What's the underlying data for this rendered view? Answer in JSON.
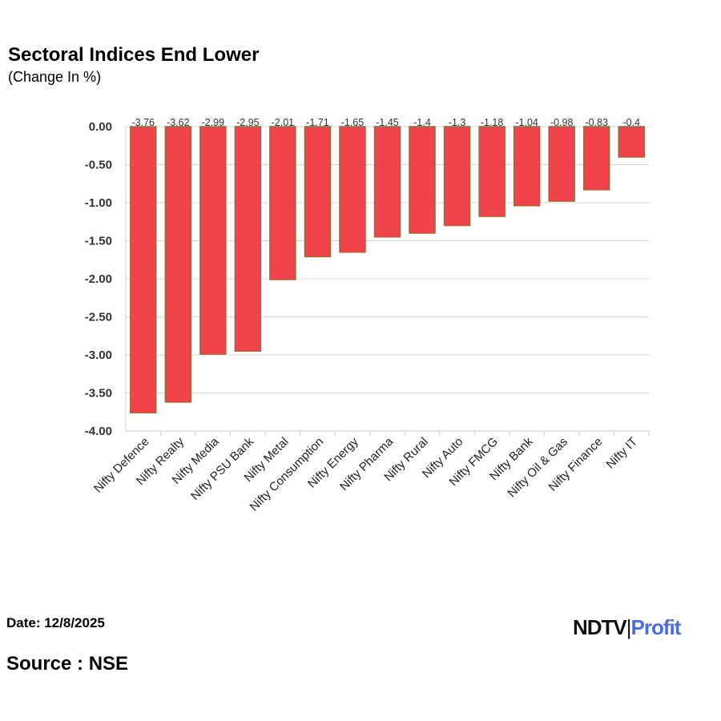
{
  "chart_data": {
    "type": "bar",
    "title": "Sectoral Indices End Lower",
    "subtitle": "(Change In %)",
    "categories": [
      "Nifty Defence",
      "Nifty Realty",
      "Nifty Media",
      "Nifty PSU Bank",
      "Nifty Metal",
      "Nifty Consumption",
      "Nifty Energy",
      "Nifty Pharma",
      "Nifty Rural",
      "Nifty Auto",
      "Nifty FMCG",
      "Nifty Bank",
      "Nifty Oil & Gas",
      "Nifty Finance",
      "Nifty IT"
    ],
    "values": [
      -3.76,
      -3.62,
      -2.99,
      -2.95,
      -2.01,
      -1.71,
      -1.65,
      -1.45,
      -1.4,
      -1.3,
      -1.18,
      -1.04,
      -0.98,
      -0.83,
      -0.4
    ],
    "value_labels": [
      "-3.76",
      "-3.62",
      "-2.99",
      "-2.95",
      "-2.01",
      "-1.71",
      "-1.65",
      "-1.45",
      "-1.4",
      "-1.3",
      "-1.18",
      "-1.04",
      "-0.98",
      "-0.83",
      "-0.4"
    ],
    "yticks": [
      "0.00",
      "-0.50",
      "-1.00",
      "-1.50",
      "-2.00",
      "-2.50",
      "-3.00",
      "-3.50",
      "-4.00"
    ],
    "ylim": [
      -4,
      0
    ],
    "grid": true,
    "bar_color": "#f0434b",
    "bar_border": "#9a6a3a"
  },
  "footer": {
    "date": "Date: 12/8/2025",
    "source": "Source : NSE",
    "logo_a": "NDTV",
    "logo_b": "Profit"
  }
}
